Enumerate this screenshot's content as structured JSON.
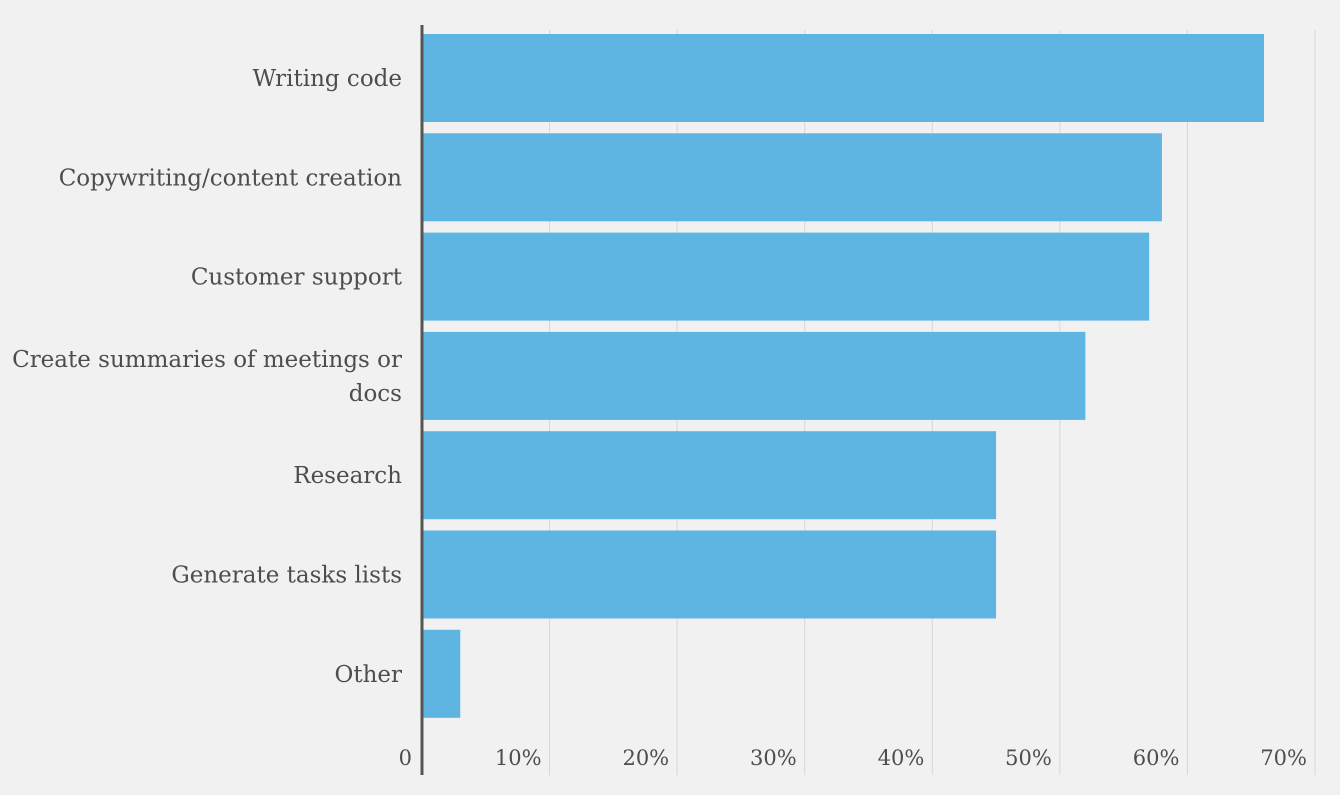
{
  "chart_data": {
    "type": "bar",
    "orientation": "horizontal",
    "categories": [
      "Writing code",
      "Copywriting/content creation",
      "Customer support",
      "Create summaries of meetings or docs",
      "Research",
      "Generate tasks lists",
      "Other"
    ],
    "values": [
      66,
      58,
      57,
      52,
      45,
      45,
      3
    ],
    "xlim": [
      0,
      70
    ],
    "xticks": [
      0,
      10,
      20,
      30,
      40,
      50,
      60,
      70
    ],
    "xtick_labels": [
      "0",
      "10%",
      "20%",
      "30%",
      "40%",
      "50%",
      "60%",
      "70%"
    ],
    "title": "",
    "xlabel": "",
    "ylabel": "",
    "grid": true,
    "legend": false,
    "bar_color": "#5eb5e2",
    "background_color": "#f1f1f1"
  }
}
